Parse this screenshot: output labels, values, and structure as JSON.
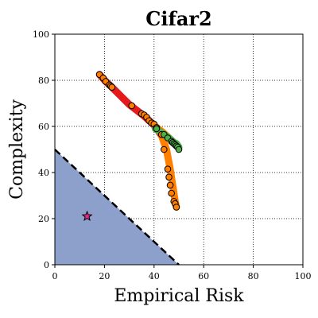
{
  "chart_data": {
    "type": "scatter",
    "title": "Cifar2",
    "xlabel": "Empirical Risk",
    "ylabel": "Complexity",
    "xlim": [
      0,
      100
    ],
    "ylim": [
      0,
      100
    ],
    "xticks": [
      "0",
      "20",
      "40",
      "60",
      "80",
      "100"
    ],
    "yticks": [
      "0",
      "20",
      "40",
      "60",
      "80",
      "100"
    ],
    "grid": true,
    "grid_style": "dotted",
    "region": {
      "polygon": [
        [
          0,
          0
        ],
        [
          0,
          50
        ],
        [
          50,
          0
        ]
      ],
      "color": "#8da0cb"
    },
    "dashed_line": {
      "x": [
        0,
        50
      ],
      "y": [
        50,
        0
      ],
      "color": "#000000"
    },
    "star": {
      "x": 13,
      "y": 21,
      "color": "#e7298a"
    },
    "paths": [
      {
        "color": "#e41a1c",
        "points": [
          [
            18,
            82.5
          ],
          [
            20.5,
            79.5
          ],
          [
            23,
            77
          ],
          [
            30,
            69.5
          ],
          [
            36,
            64.5
          ],
          [
            38.5,
            62
          ],
          [
            40.5,
            60
          ],
          [
            43,
            56
          ]
        ]
      },
      {
        "color": "#ff7f00",
        "points": [
          [
            40.5,
            60
          ],
          [
            44,
            57
          ],
          [
            48,
            53
          ]
        ]
      },
      {
        "color": "#ff7f00",
        "points": [
          [
            43,
            56
          ],
          [
            45,
            50
          ],
          [
            46.5,
            41.5
          ],
          [
            47,
            38
          ],
          [
            47.5,
            34.5
          ],
          [
            48,
            31
          ],
          [
            48.5,
            27.5
          ],
          [
            49,
            25
          ]
        ]
      },
      {
        "color": "#4daf4a",
        "points": [
          [
            40.5,
            59
          ],
          [
            44,
            56.5
          ],
          [
            46,
            55
          ],
          [
            48,
            53
          ],
          [
            49,
            52.5
          ],
          [
            50,
            51
          ]
        ]
      }
    ],
    "series": [
      {
        "color": "#e41a1c",
        "points": [
          [
            18,
            82.5
          ],
          [
            19.5,
            81
          ],
          [
            20.5,
            79.5
          ],
          [
            22,
            78
          ],
          [
            22.5,
            77.5
          ],
          [
            23,
            77
          ],
          [
            31,
            69
          ],
          [
            35,
            65.5
          ],
          [
            36,
            65
          ],
          [
            37,
            64
          ],
          [
            38,
            62.5
          ],
          [
            39,
            61.5
          ],
          [
            40,
            61
          ],
          [
            41,
            59.5
          ],
          [
            43,
            56.5
          ],
          [
            44,
            50
          ],
          [
            45.5,
            41.5
          ],
          [
            46,
            38
          ],
          [
            46.5,
            34.5
          ],
          [
            47,
            31
          ],
          [
            48,
            27.5
          ],
          [
            48.5,
            26.5
          ],
          [
            49,
            25
          ]
        ]
      },
      {
        "color": "#4daf4a",
        "points": [
          [
            41,
            59
          ],
          [
            44,
            56.5
          ],
          [
            45.5,
            55
          ],
          [
            47,
            53.5
          ],
          [
            47.5,
            53
          ],
          [
            48,
            52.5
          ],
          [
            48.5,
            52
          ],
          [
            49,
            51.5
          ],
          [
            49.5,
            51
          ],
          [
            50,
            50
          ]
        ]
      }
    ]
  }
}
